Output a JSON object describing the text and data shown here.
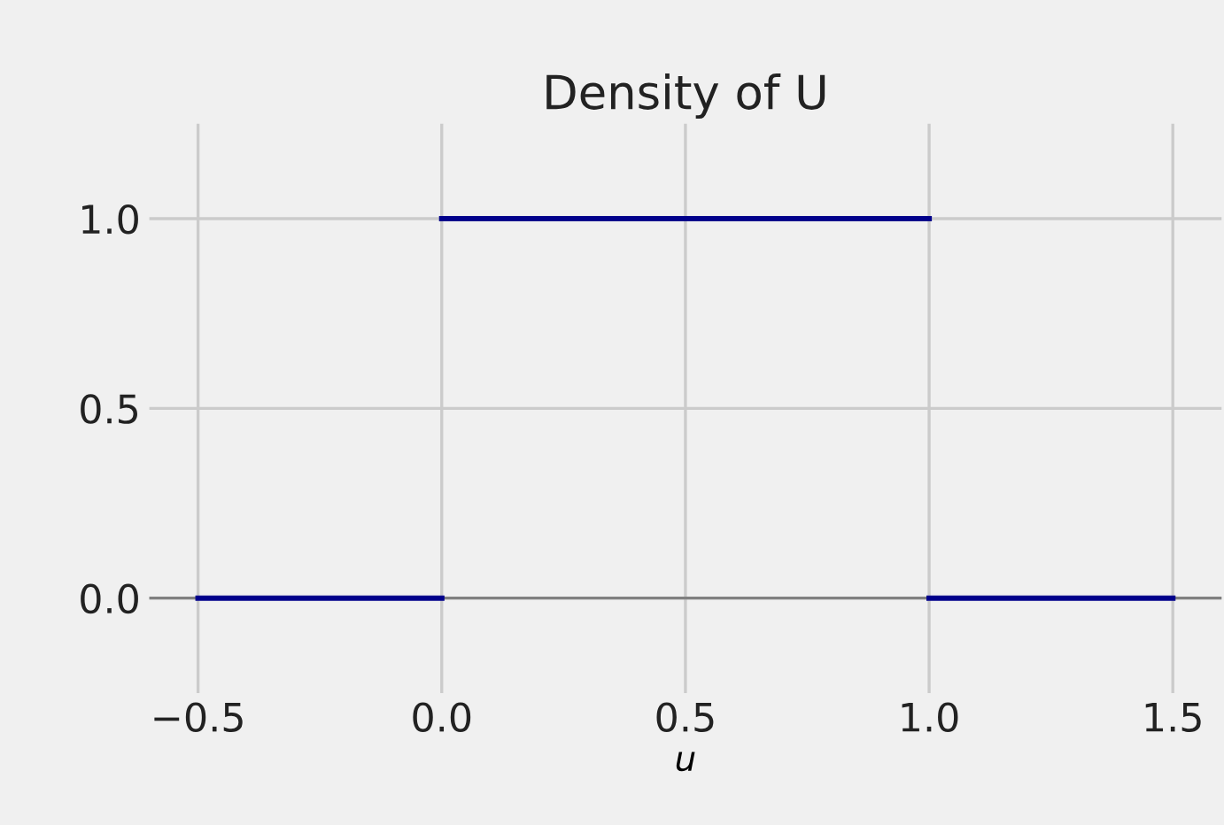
{
  "chart_data": {
    "type": "line",
    "title": "Density of U",
    "xlabel": "u",
    "series": [
      {
        "color": "#00008b",
        "x": [
          -0.5,
          0
        ],
        "values": [
          0,
          0
        ]
      },
      {
        "color": "#00008b",
        "x": [
          0,
          1
        ],
        "values": [
          1,
          1
        ]
      },
      {
        "color": "#00008b",
        "x": [
          1,
          1.5
        ],
        "values": [
          0,
          0
        ]
      }
    ],
    "xlim": [
      -0.6,
      1.6
    ],
    "ylim": [
      -0.25,
      1.25
    ],
    "xticks": [
      {
        "value": -0.5,
        "label": "−0.5"
      },
      {
        "value": 0,
        "label": "0.0"
      },
      {
        "value": 0.5,
        "label": "0.5"
      },
      {
        "value": 1,
        "label": "1.0"
      },
      {
        "value": 1.5,
        "label": "1.5"
      }
    ],
    "yticks": [
      {
        "value": 0,
        "label": "0.0"
      },
      {
        "value": 0.5,
        "label": "0.5"
      },
      {
        "value": 1,
        "label": "1.0"
      }
    ],
    "ref_lines": [
      {
        "axis": "y",
        "value": 0,
        "color": "#808080"
      }
    ],
    "grid": true,
    "marker": "none",
    "line_style": "solid"
  }
}
